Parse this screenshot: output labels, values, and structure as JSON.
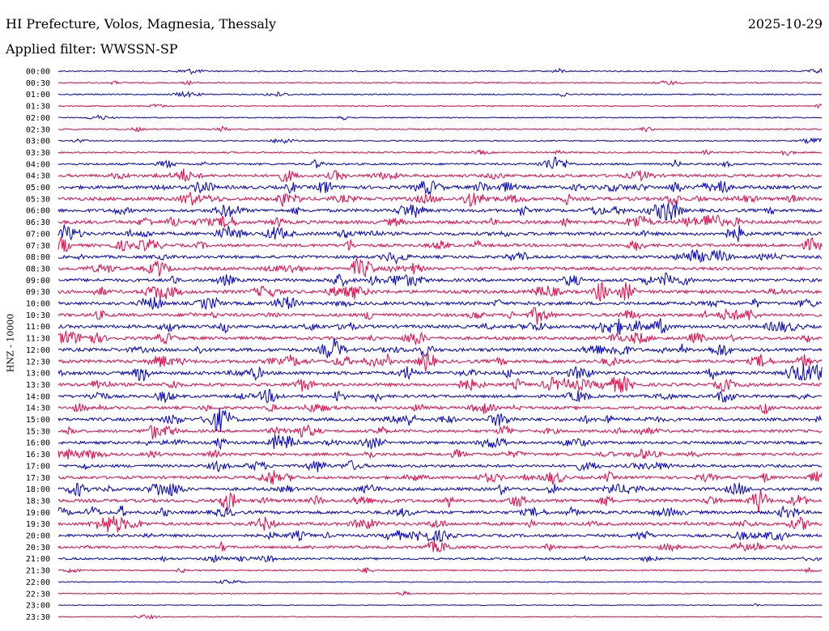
{
  "header": {
    "station": "HI Prefecture, Volos, Magnesia, Thessaly",
    "date": "2025-10-29",
    "filter": "Applied filter: WWSSN-SP"
  },
  "chart_data": {
    "type": "line",
    "ylabel": "HNZ - 10000",
    "rows": [
      "00:00",
      "00:30",
      "01:00",
      "01:30",
      "02:00",
      "02:30",
      "03:00",
      "03:30",
      "04:00",
      "04:30",
      "05:00",
      "05:30",
      "06:00",
      "06:30",
      "07:00",
      "07:30",
      "08:00",
      "08:30",
      "09:00",
      "09:30",
      "10:00",
      "10:30",
      "11:00",
      "11:30",
      "12:00",
      "12:30",
      "13:00",
      "13:30",
      "14:00",
      "14:30",
      "15:00",
      "15:30",
      "16:00",
      "16:30",
      "17:00",
      "17:30",
      "18:00",
      "18:30",
      "19:00",
      "19:30",
      "20:00",
      "20:30",
      "21:00",
      "21:30",
      "22:00",
      "22:30",
      "23:00",
      "23:30"
    ],
    "colors": [
      "#0000cc",
      "#ee0044"
    ],
    "activity_level": [
      0.2,
      0.2,
      0.2,
      0.15,
      0.15,
      0.2,
      0.2,
      0.3,
      0.5,
      0.8,
      1.0,
      1.0,
      0.9,
      1.0,
      0.95,
      0.85,
      0.85,
      0.9,
      0.9,
      0.95,
      0.9,
      0.9,
      0.95,
      0.9,
      1.0,
      1.0,
      1.0,
      0.9,
      0.8,
      0.8,
      0.9,
      0.8,
      0.8,
      0.8,
      0.8,
      0.8,
      0.9,
      0.9,
      0.9,
      0.85,
      0.8,
      0.7,
      0.5,
      0.25,
      0.1,
      0.1,
      0.05,
      0.05
    ]
  }
}
